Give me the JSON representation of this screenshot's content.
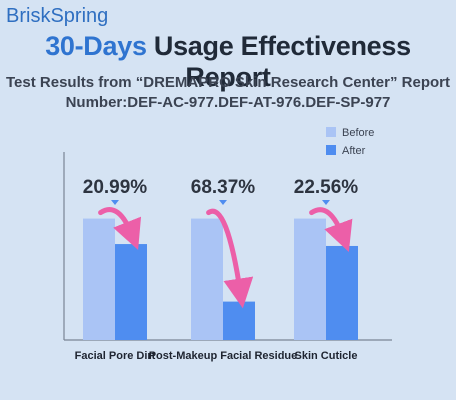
{
  "brand": "BriskSpring",
  "title": {
    "highlight": "30-Days",
    "rest": "Usage Effectiveness Report"
  },
  "subtitle": {
    "line1": "Test Results from “DREMAPRO Skin Research Center” Report",
    "line2": "Number:DEF-AC-977.DEF-AT-976.DEF-SP-977"
  },
  "colors": {
    "before": "#aac4f5",
    "after": "#4f8df0",
    "arrow": "#ec5fa8",
    "marker": "#4f8df0",
    "axis": "#7a8494"
  },
  "chart_data": {
    "type": "bar",
    "title": "",
    "xlabel": "",
    "ylabel": "",
    "categories": [
      "Facial Pore Dirt",
      "Post-Makeup Facial Residue",
      "Skin Cuticle"
    ],
    "series": [
      {
        "name": "Before",
        "values": [
          100,
          100,
          100
        ]
      },
      {
        "name": "After",
        "values": [
          79.01,
          31.63,
          77.44
        ]
      }
    ],
    "annotations": [
      "20.99%",
      "68.37%",
      "22.56%"
    ],
    "ylim": [
      0,
      140
    ],
    "grid": false,
    "legend": "top-right"
  }
}
